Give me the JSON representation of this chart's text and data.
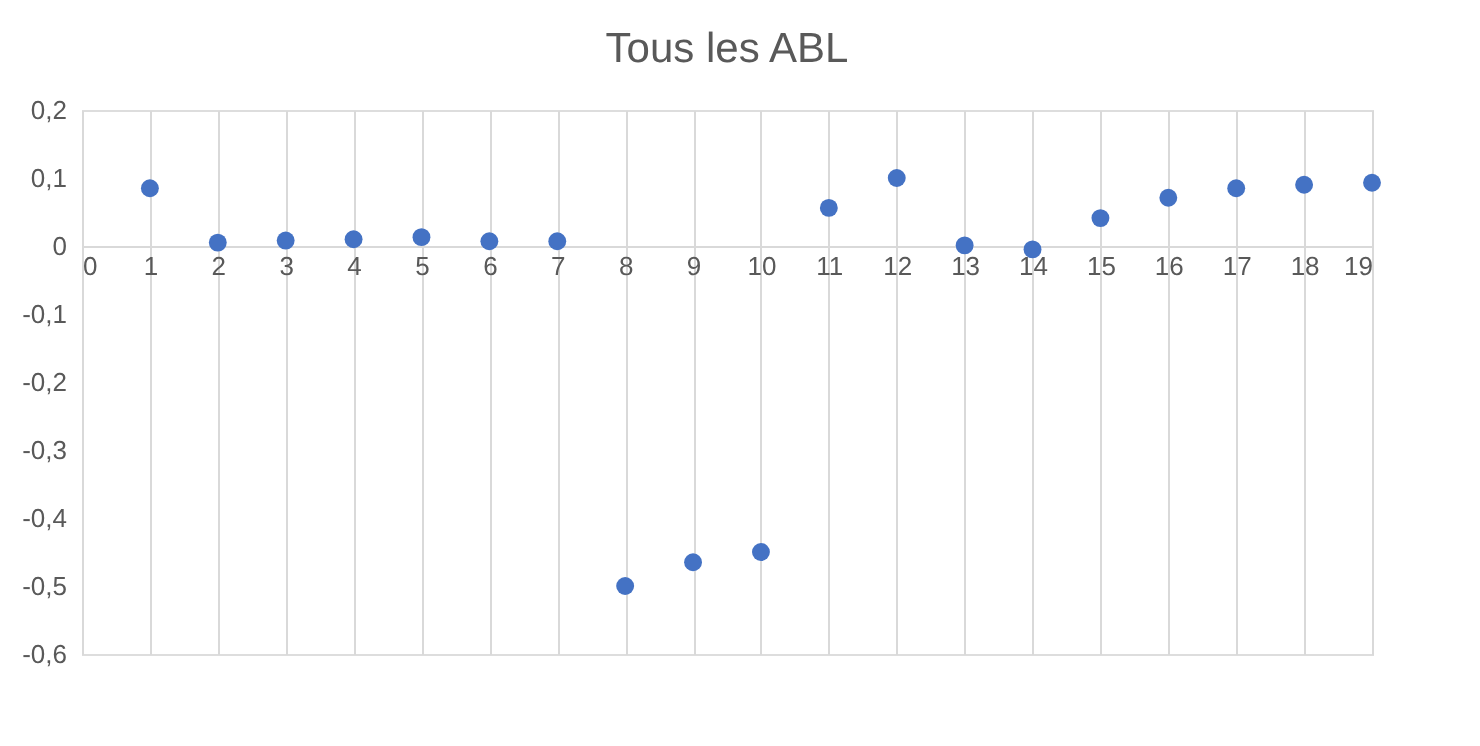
{
  "chart_data": {
    "type": "scatter",
    "title": "Tous les ABL",
    "x": [
      1,
      2,
      3,
      4,
      5,
      6,
      7,
      8,
      9,
      10,
      11,
      12,
      13,
      14,
      15,
      16,
      17,
      18,
      19
    ],
    "series": [
      {
        "color": "#4472c4",
        "values": [
          0.085,
          0.005,
          0.008,
          0.01,
          0.013,
          0.007,
          0.007,
          -0.5,
          -0.465,
          -0.45,
          0.056,
          0.1,
          0.001,
          -0.005,
          0.041,
          0.071,
          0.085,
          0.09,
          0.093
        ]
      }
    ],
    "xlim": [
      0,
      19
    ],
    "xticks": [
      0,
      1,
      2,
      3,
      4,
      5,
      6,
      7,
      8,
      9,
      10,
      11,
      12,
      13,
      14,
      15,
      16,
      17,
      18,
      19
    ],
    "ylim": [
      -0.6,
      0.2
    ],
    "yticks": [
      {
        "value": -0.6,
        "label": "-0,6"
      },
      {
        "value": -0.5,
        "label": "-0,5"
      },
      {
        "value": -0.4,
        "label": "-0,4"
      },
      {
        "value": -0.3,
        "label": "-0,3"
      },
      {
        "value": -0.2,
        "label": "-0,2"
      },
      {
        "value": -0.1,
        "label": "-0,1"
      },
      0,
      {
        "value": 0.1,
        "label": "0,1"
      },
      {
        "value": 0.2,
        "label": "0,2"
      }
    ],
    "grid": "x",
    "marker": "circle"
  }
}
